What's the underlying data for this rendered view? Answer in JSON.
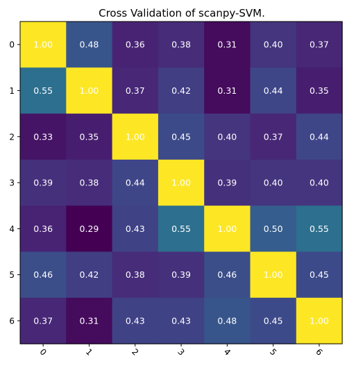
{
  "chart_data": {
    "type": "heatmap",
    "title": "Cross Validation of scanpy-SVM.",
    "x_categories": [
      "0",
      "1",
      "2",
      "3",
      "4",
      "5",
      "6"
    ],
    "y_categories": [
      "0",
      "1",
      "2",
      "3",
      "4",
      "5",
      "6"
    ],
    "x_tick_rotation_deg": 45,
    "colormap": "viridis",
    "value_range": [
      0.29,
      1.0
    ],
    "values": [
      [
        1.0,
        0.48,
        0.36,
        0.38,
        0.31,
        0.4,
        0.37
      ],
      [
        0.55,
        1.0,
        0.37,
        0.42,
        0.31,
        0.44,
        0.35
      ],
      [
        0.33,
        0.35,
        1.0,
        0.45,
        0.4,
        0.37,
        0.44
      ],
      [
        0.39,
        0.38,
        0.44,
        1.0,
        0.39,
        0.4,
        0.4
      ],
      [
        0.36,
        0.29,
        0.43,
        0.55,
        1.0,
        0.5,
        0.55
      ],
      [
        0.46,
        0.42,
        0.38,
        0.39,
        0.46,
        1.0,
        0.45
      ],
      [
        0.37,
        0.31,
        0.43,
        0.43,
        0.48,
        0.45,
        1.0
      ]
    ],
    "labels": [
      [
        "1.00",
        "0.48",
        "0.36",
        "0.38",
        "0.31",
        "0.40",
        "0.37"
      ],
      [
        "0.55",
        "1.00",
        "0.37",
        "0.42",
        "0.31",
        "0.44",
        "0.35"
      ],
      [
        "0.33",
        "0.35",
        "1.00",
        "0.45",
        "0.40",
        "0.37",
        "0.44"
      ],
      [
        "0.39",
        "0.38",
        "0.44",
        "1.00",
        "0.39",
        "0.40",
        "0.40"
      ],
      [
        "0.36",
        "0.29",
        "0.43",
        "0.55",
        "1.00",
        "0.50",
        "0.55"
      ],
      [
        "0.46",
        "0.42",
        "0.38",
        "0.39",
        "0.46",
        "1.00",
        "0.45"
      ],
      [
        "0.37",
        "0.31",
        "0.43",
        "0.43",
        "0.48",
        "0.45",
        "1.00"
      ]
    ],
    "label_colors": {
      "on_dark": "#ffffff",
      "on_bright": "#ffffff"
    },
    "axis_color": "#000000",
    "grid": false,
    "legend": "none"
  }
}
